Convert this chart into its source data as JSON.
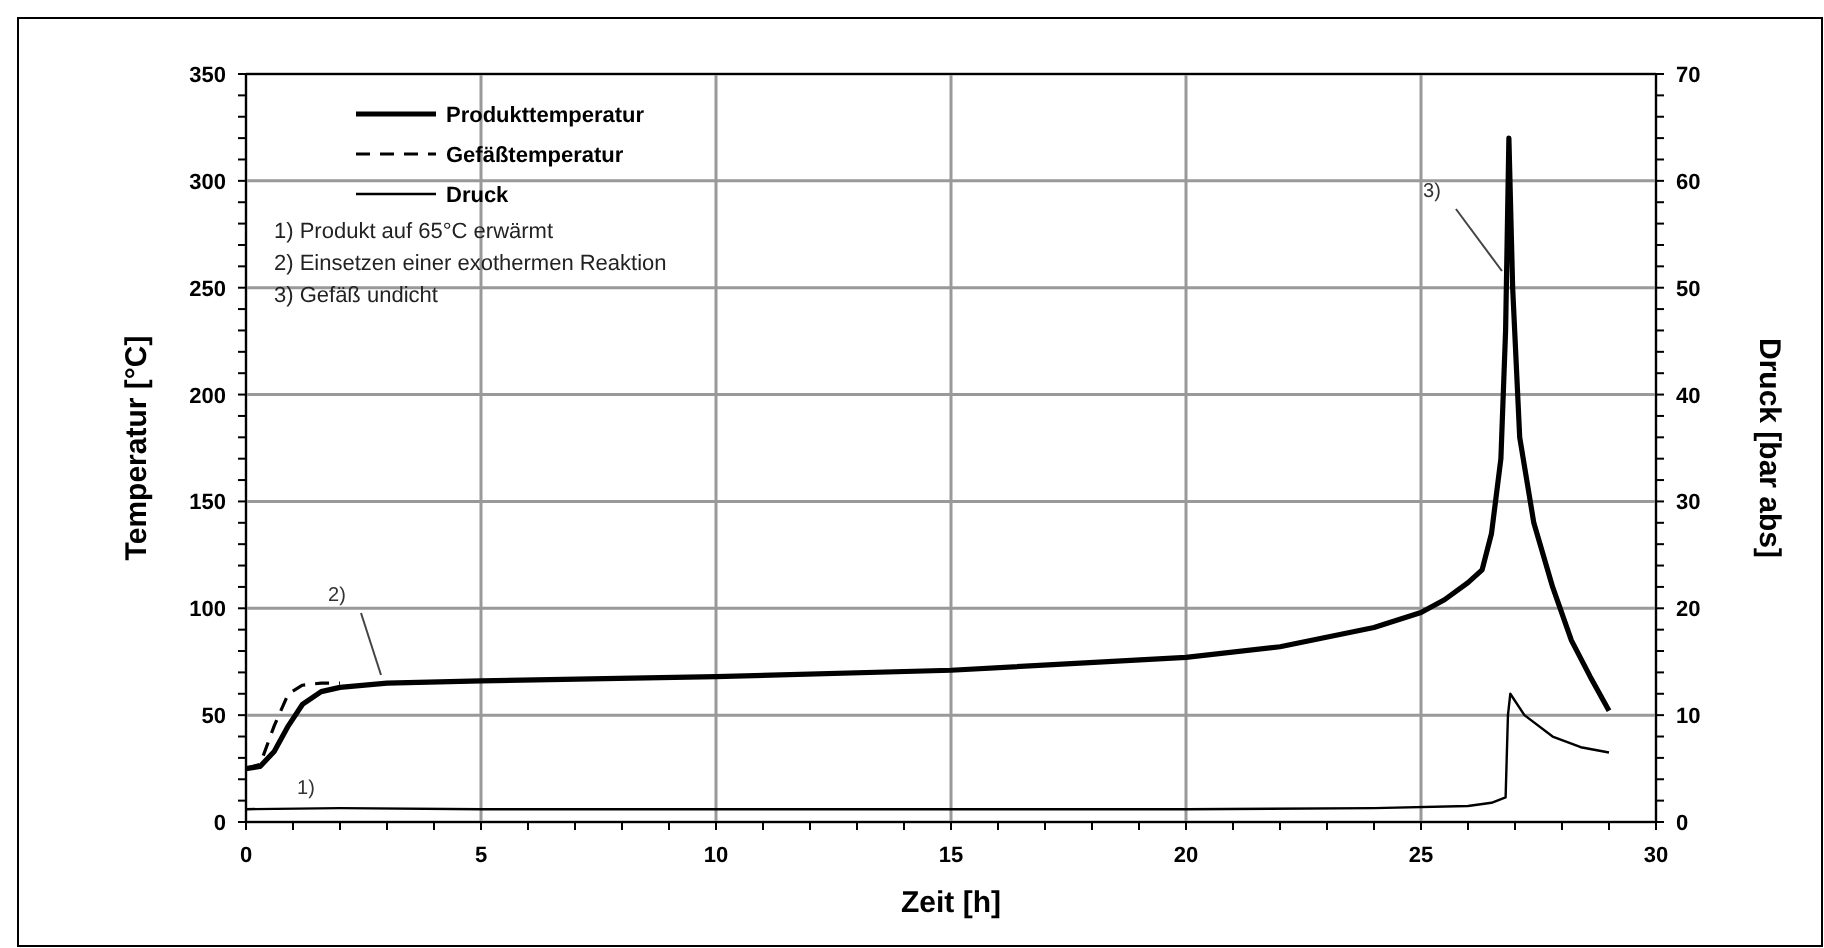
{
  "chart_data": {
    "type": "line",
    "xlabel": "Zeit [h]",
    "ylabel": "Temperatur [°C]",
    "y2label": "Druck [bar abs]",
    "xlim": [
      0,
      30
    ],
    "xticks": [
      0,
      5,
      10,
      15,
      20,
      25,
      30
    ],
    "ylim": [
      0,
      350
    ],
    "yticks": [
      0,
      50,
      100,
      150,
      200,
      250,
      300,
      350
    ],
    "y2lim": [
      0,
      70
    ],
    "y2ticks": [
      0,
      10,
      20,
      30,
      40,
      50,
      60,
      70
    ],
    "grid": true,
    "legend": "top left",
    "series": [
      {
        "name": "Produkttemperatur",
        "color": "#000000",
        "line_style": "solid",
        "x": [
          0,
          0.3,
          0.6,
          0.9,
          1.2,
          1.6,
          2,
          3,
          5,
          10,
          15,
          20,
          22,
          24,
          25,
          25.5,
          26,
          26.3,
          26.5,
          26.7,
          26.8,
          26.87,
          26.95,
          27.1,
          27.4,
          27.8,
          28.2,
          28.6,
          29
        ],
        "values": [
          25,
          26,
          33,
          45,
          55,
          61,
          63,
          65,
          66,
          68,
          71,
          77,
          82,
          91,
          98,
          104,
          112,
          118,
          135,
          170,
          230,
          320,
          250,
          180,
          140,
          110,
          85,
          68,
          52
        ]
      },
      {
        "name": "Gefäßtemperatur",
        "color": "#000000",
        "line_style": "dashed",
        "x": [
          0,
          0.3,
          0.6,
          0.9,
          1.2,
          1.6,
          2
        ],
        "values": [
          25,
          27,
          45,
          60,
          64,
          65,
          65
        ]
      },
      {
        "name": "Druck",
        "color": "#000000",
        "line_style": "solid",
        "axis": "y2",
        "x": [
          0,
          2,
          5,
          10,
          15,
          20,
          24,
          26,
          26.5,
          26.8,
          26.85,
          26.9,
          27.2,
          27.8,
          28.4,
          29
        ],
        "values": [
          1.2,
          1.3,
          1.2,
          1.2,
          1.2,
          1.2,
          1.3,
          1.5,
          1.8,
          2.3,
          10,
          12,
          10,
          8,
          7,
          6.5
        ]
      }
    ],
    "annotations": [
      "1) Produkt auf 65°C erwärmt",
      "2) Einsetzen einer exothermen Reaktion",
      "3) Gefäß undicht",
      "1)",
      {
        "text": "2)",
        "x": 3,
        "y": 66
      },
      {
        "text": "3)",
        "x": 26.85,
        "y": 255
      }
    ]
  }
}
